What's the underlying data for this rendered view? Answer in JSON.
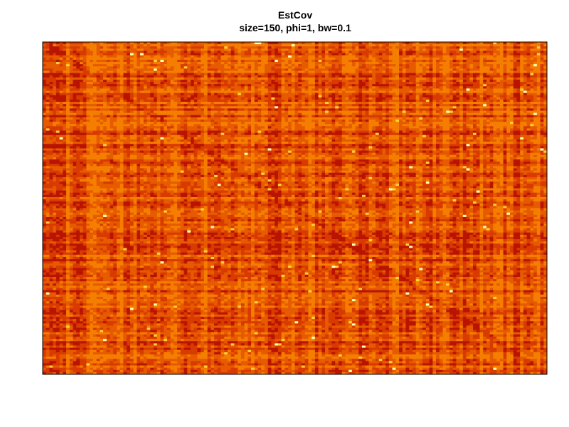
{
  "chart_data": {
    "type": "heatmap",
    "title": "EstCov",
    "subtitle": "size=150, phi=1, bw=0.1",
    "xlabel": "",
    "ylabel": "",
    "matrix_size": 150,
    "grid": false,
    "legend": "none",
    "colormap": "heat",
    "colors": {
      "low": "#b81400",
      "mid_low": "#d83a00",
      "mid": "#e65a00",
      "mid_high": "#f57e00",
      "high": "#ffd23c",
      "max": "#ffffb4",
      "border": "#000000"
    }
  }
}
